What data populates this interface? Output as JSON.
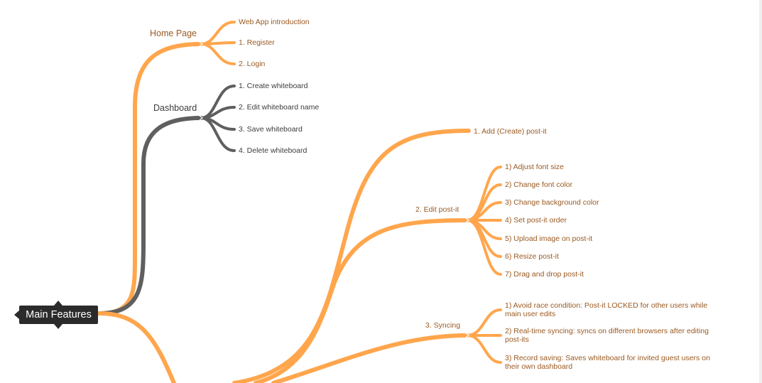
{
  "root": {
    "label": "Main Features"
  },
  "colors": {
    "orange": "#ffa64d",
    "grey": "#5f5f5f",
    "root_bg": "#2b2b2b"
  },
  "home_page": {
    "label": "Home Page",
    "items": [
      "Web App introduction",
      "1.  Register",
      "2.  Login"
    ]
  },
  "dashboard": {
    "label": "Dashboard",
    "items": [
      "1.  Create whiteboard",
      "2.  Edit whiteboard name",
      "3.  Save whiteboard",
      "4.  Delete whiteboard"
    ]
  },
  "post_it": {
    "add": "1.  Add (Create) post-it",
    "edit": {
      "label": "2.  Edit post-it",
      "items": [
        "1) Adjust font size",
        "2) Change font color",
        "3) Change background color",
        "4) Set post-it order",
        "5) Upload image on post-it",
        "6) Resize post-it",
        "7) Drag and drop post-it"
      ]
    },
    "syncing": {
      "label": "3.  Syncing",
      "items": [
        "1) Avoid race condition: Post-it LOCKED for other users while main user edits",
        "2) Real-time syncing: syncs on different browsers after editing post-its",
        "3) Record saving: Saves whiteboard for invited guest users on their own dashboard"
      ]
    }
  }
}
